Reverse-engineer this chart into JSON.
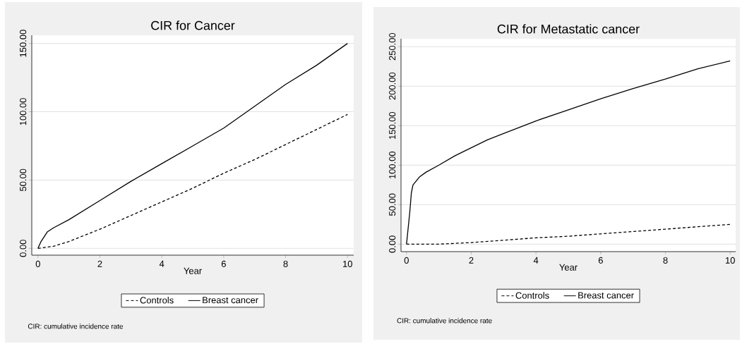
{
  "chart_data": [
    {
      "type": "line",
      "title": "CIR for Cancer",
      "xlabel": "Year",
      "xlim": [
        -0.2,
        10.2
      ],
      "ylim": [
        -5,
        156
      ],
      "xticks": [
        0,
        2,
        4,
        6,
        8,
        10
      ],
      "yticks": [
        {
          "value": 0,
          "label": "0.00"
        },
        {
          "value": 50,
          "label": "50.00"
        },
        {
          "value": 100,
          "label": "100.00"
        },
        {
          "value": 150,
          "label": "150.00"
        }
      ],
      "grid": "y",
      "legend": "bottom",
      "annotations": [
        "CIR: cumulative incidence rate"
      ],
      "series": [
        {
          "name": "Controls",
          "color": "#000000",
          "line_style": "dashed",
          "x": [
            0,
            0.5,
            1,
            2,
            3,
            4,
            5,
            6,
            7,
            8,
            9,
            10
          ],
          "values": [
            0,
            1.5,
            5,
            14,
            24,
            34,
            44,
            55,
            65,
            76,
            87,
            98
          ]
        },
        {
          "name": "Breast cancer",
          "color": "#000000",
          "line_style": "solid",
          "x": [
            0,
            0.1,
            0.3,
            0.5,
            1,
            2,
            3,
            4,
            5,
            6,
            7,
            8,
            9,
            10
          ],
          "values": [
            0,
            5,
            12,
            15,
            21,
            35,
            49,
            62,
            75,
            88,
            104,
            120,
            134,
            150
          ]
        }
      ]
    },
    {
      "type": "line",
      "title": "CIR for Metastatic cancer",
      "xlabel": "Year",
      "xlim": [
        -0.17,
        10.17
      ],
      "ylim": [
        -9.5,
        260
      ],
      "xticks": [
        0,
        2,
        4,
        6,
        8,
        10
      ],
      "yticks": [
        {
          "value": 0,
          "label": "0.00"
        },
        {
          "value": 50,
          "label": "50.00"
        },
        {
          "value": 100,
          "label": "100.00"
        },
        {
          "value": 150,
          "label": "150.00"
        },
        {
          "value": 200,
          "label": "200.00"
        },
        {
          "value": 250,
          "label": "250.00"
        }
      ],
      "grid": "y",
      "legend": "bottom",
      "annotations": [
        "CIR: cumulative incidence rate"
      ],
      "series": [
        {
          "name": "Controls",
          "color": "#000000",
          "line_style": "dashed",
          "x": [
            0,
            1,
            2,
            3,
            4,
            5,
            6,
            7,
            8,
            9,
            10
          ],
          "values": [
            0,
            0,
            2,
            5,
            8,
            10,
            13,
            16,
            19,
            22,
            25
          ]
        },
        {
          "name": "Breast cancer",
          "color": "#000000",
          "line_style": "solid",
          "x": [
            0,
            0.1,
            0.15,
            0.2,
            0.4,
            0.6,
            1,
            1.5,
            2,
            2.5,
            3,
            4,
            5,
            6,
            7,
            8,
            9,
            10
          ],
          "values": [
            0,
            40,
            65,
            75,
            85,
            91,
            100,
            112,
            122,
            132,
            140,
            156,
            170,
            184,
            197,
            209,
            222,
            232
          ]
        }
      ]
    }
  ]
}
